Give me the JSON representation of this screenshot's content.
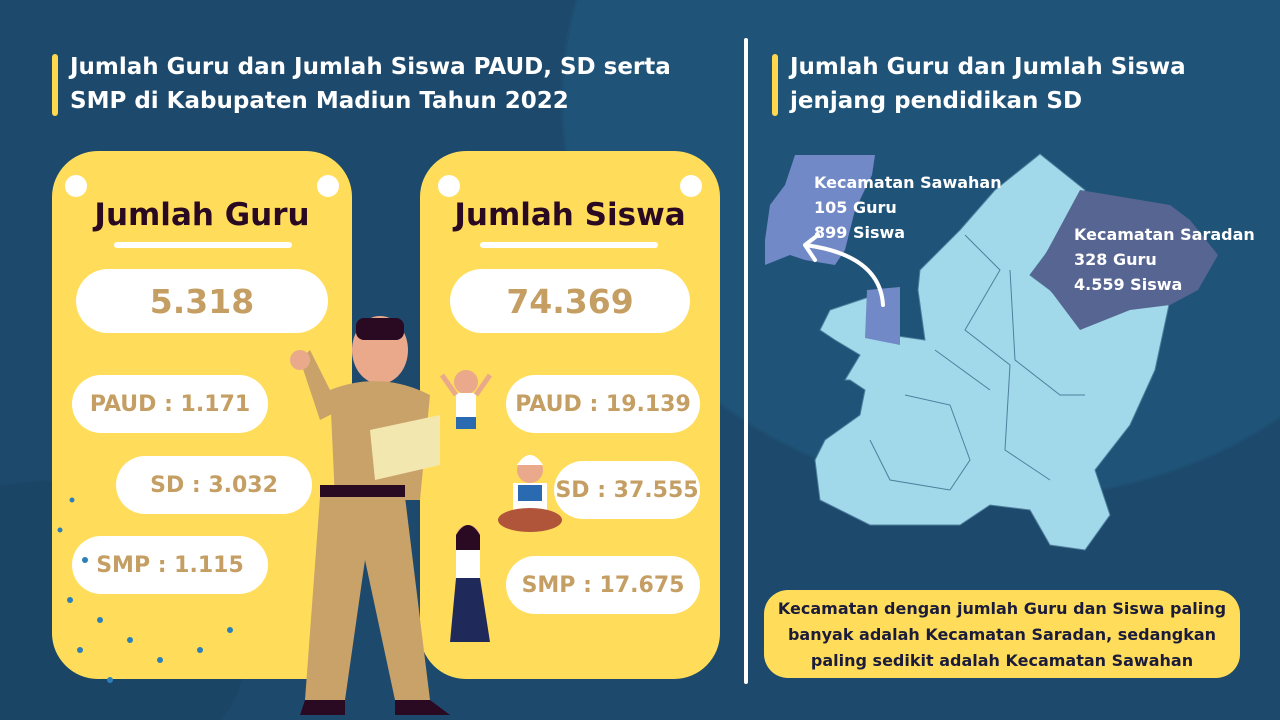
{
  "left": {
    "title": "Jumlah Guru dan Jumlah Siswa PAUD, SD serta SMP di Kabupaten Madiun Tahun 2022",
    "guru_card": {
      "heading": "Jumlah Guru",
      "total": "5.318",
      "items": [
        "PAUD : 1.171",
        "SD : 3.032",
        "SMP : 1.115"
      ]
    },
    "siswa_card": {
      "heading": "Jumlah Siswa",
      "total": "74.369",
      "items": [
        "PAUD : 19.139",
        "SD : 37.555",
        "SMP : 17.675"
      ]
    }
  },
  "right": {
    "title": "Jumlah Guru dan Jumlah Siswa jenjang pendidikan SD",
    "sawahan": {
      "name": "Kecamatan Sawahan",
      "guru": "105 Guru",
      "siswa": "899 Siswa"
    },
    "saradan": {
      "name": "Kecamatan Saradan",
      "guru": "328 Guru",
      "siswa": "4.559 Siswa"
    },
    "note": "Kecamatan dengan jumlah Guru dan Siswa paling banyak adalah Kecamatan Saradan, sedangkan paling sedikit adalah Kecamatan Sawahan"
  },
  "colors": {
    "background": "#1d4a6c",
    "card": "#ffdd5a",
    "number": "#c49e62",
    "map": "#a1d9ea",
    "sawahan": "#7189c6",
    "saradan": "#566591"
  }
}
